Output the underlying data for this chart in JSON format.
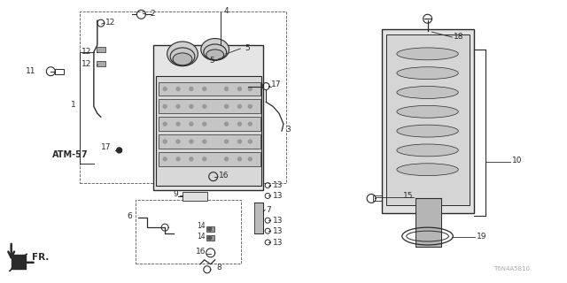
{
  "bg_color": "#ffffff",
  "diagram_color": "#2a2a2a",
  "watermark": "T6N4A5810",
  "arrow_text": "FR."
}
